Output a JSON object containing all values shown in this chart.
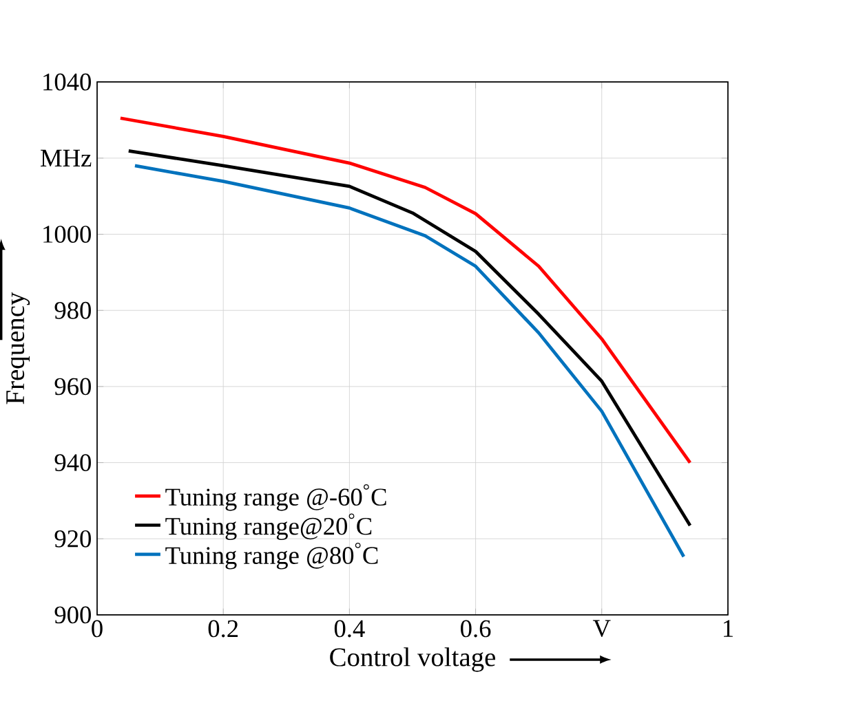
{
  "chart_data": {
    "type": "line",
    "xlabel": "Control voltage",
    "ylabel": "Frequency",
    "xlim": [
      0,
      1
    ],
    "ylim": [
      900,
      1040
    ],
    "xticks": [
      0,
      0.2,
      0.4,
      0.6,
      {
        "value": 0.8,
        "label": "V"
      },
      1
    ],
    "yticks": [
      900,
      920,
      940,
      960,
      980,
      1000,
      {
        "value": 1020,
        "label": "MHz"
      },
      1040
    ],
    "grid": true,
    "legend": "bottom left",
    "series": [
      {
        "name": "Tuning range @-60$^{°}$C",
        "color": "#ff0000",
        "x": [
          0.037,
          0.2,
          0.4,
          0.52,
          0.6,
          0.7,
          0.8,
          0.94
        ],
        "values": [
          1030.5,
          1025.7,
          1018.7,
          1012.3,
          1005.4,
          991.6,
          972.5,
          940
        ]
      },
      {
        "name": "Tuning range@20$^{°}$C",
        "color": "#000000",
        "x": [
          0.05,
          0.2,
          0.4,
          0.5,
          0.6,
          0.7,
          0.8,
          0.94
        ],
        "values": [
          1021.9,
          1018,
          1012.6,
          1005.6,
          995.5,
          979,
          961.4,
          923.5
        ]
      },
      {
        "name": "Tuning range @80$^{°}$C",
        "color": "#0072bd",
        "x": [
          0.06,
          0.2,
          0.4,
          0.52,
          0.6,
          0.7,
          0.8,
          0.93
        ],
        "values": [
          1018,
          1013.9,
          1006.9,
          999.6,
          991.6,
          974.1,
          953.5,
          915.3
        ]
      }
    ]
  }
}
